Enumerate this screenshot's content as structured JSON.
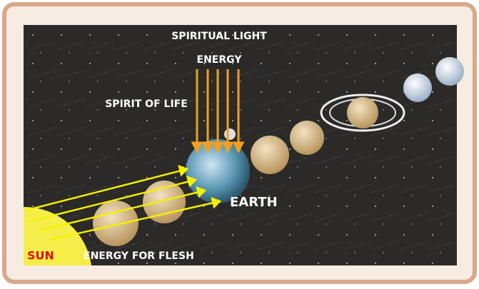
{
  "labels": {
    "spiritual_light": "SPIRITUAL LIGHT",
    "energy": "ENERGY",
    "spirit_of_life": "SPIRIT OF LIFE",
    "earth": "EARTH",
    "sun": "SUN",
    "energy_for_flesh": "ENERGY FOR FLESH"
  }
}
